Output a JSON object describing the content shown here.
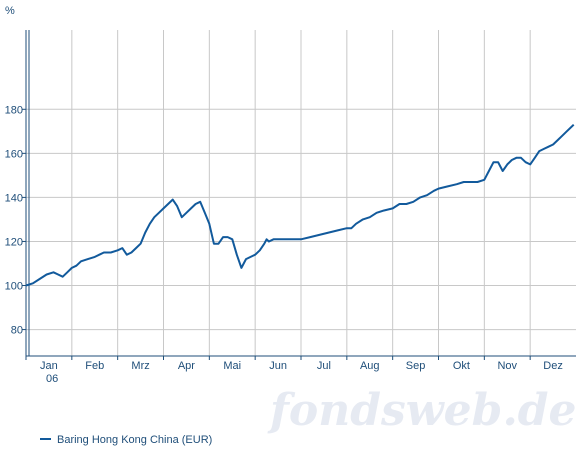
{
  "chart_data": {
    "type": "line",
    "ylabel": "%",
    "ylim": [
      68,
      216
    ],
    "yticks": [
      80,
      100,
      120,
      140,
      160,
      180
    ],
    "xlim": [
      0,
      12
    ],
    "month_labels": [
      "Jan",
      "Feb",
      "Mrz",
      "Apr",
      "Mai",
      "Jun",
      "Jul",
      "Aug",
      "Sep",
      "Okt",
      "Nov",
      "Dez"
    ],
    "year_label": "06",
    "grid": true,
    "legend_position": "bottom-left",
    "series": [
      {
        "name": "Baring Hong Kong China (EUR)",
        "color": "#125a9c",
        "x": [
          0,
          0.15,
          0.3,
          0.45,
          0.6,
          0.7,
          0.8,
          0.9,
          1.0,
          1.1,
          1.2,
          1.35,
          1.5,
          1.6,
          1.7,
          1.85,
          2.0,
          2.1,
          2.2,
          2.3,
          2.4,
          2.5,
          2.6,
          2.7,
          2.8,
          2.9,
          3.0,
          3.1,
          3.2,
          3.3,
          3.4,
          3.5,
          3.6,
          3.7,
          3.8,
          3.9,
          4.0,
          4.1,
          4.2,
          4.3,
          4.4,
          4.5,
          4.6,
          4.7,
          4.8,
          4.9,
          5.0,
          5.1,
          5.2,
          5.25,
          5.3,
          5.4,
          5.5,
          5.6,
          5.7,
          5.8,
          5.9,
          6.0,
          6.2,
          6.4,
          6.6,
          6.8,
          7.0,
          7.1,
          7.2,
          7.35,
          7.5,
          7.65,
          7.8,
          8.0,
          8.15,
          8.3,
          8.45,
          8.6,
          8.75,
          8.9,
          9.0,
          9.2,
          9.4,
          9.55,
          9.7,
          9.85,
          10.0,
          10.1,
          10.2,
          10.3,
          10.4,
          10.5,
          10.6,
          10.7,
          10.8,
          10.9,
          11.0,
          11.1,
          11.2,
          11.3,
          11.4,
          11.5,
          11.6,
          11.7,
          11.8,
          11.95
        ],
        "y": [
          100,
          101,
          103,
          105,
          106,
          105,
          104,
          106,
          108,
          109,
          111,
          112,
          113,
          114,
          115,
          115,
          116,
          117,
          114,
          115,
          117,
          119,
          124,
          128,
          131,
          133,
          135,
          137,
          139,
          136,
          131,
          133,
          135,
          137,
          138,
          133,
          128,
          119,
          119,
          122,
          122,
          121,
          114,
          108,
          112,
          113,
          114,
          116,
          119,
          121,
          120,
          121,
          121,
          121,
          121,
          121,
          121,
          121,
          122,
          123,
          124,
          125,
          126,
          126,
          128,
          130,
          131,
          133,
          134,
          135,
          137,
          137,
          138,
          140,
          141,
          143,
          144,
          145,
          146,
          147,
          147,
          147,
          148,
          152,
          156,
          156,
          152,
          155,
          157,
          158,
          158,
          156,
          155,
          158,
          161,
          162,
          163,
          164,
          166,
          168,
          170,
          173
        ]
      }
    ]
  },
  "branding": {
    "watermark": "fondsweb.de"
  }
}
